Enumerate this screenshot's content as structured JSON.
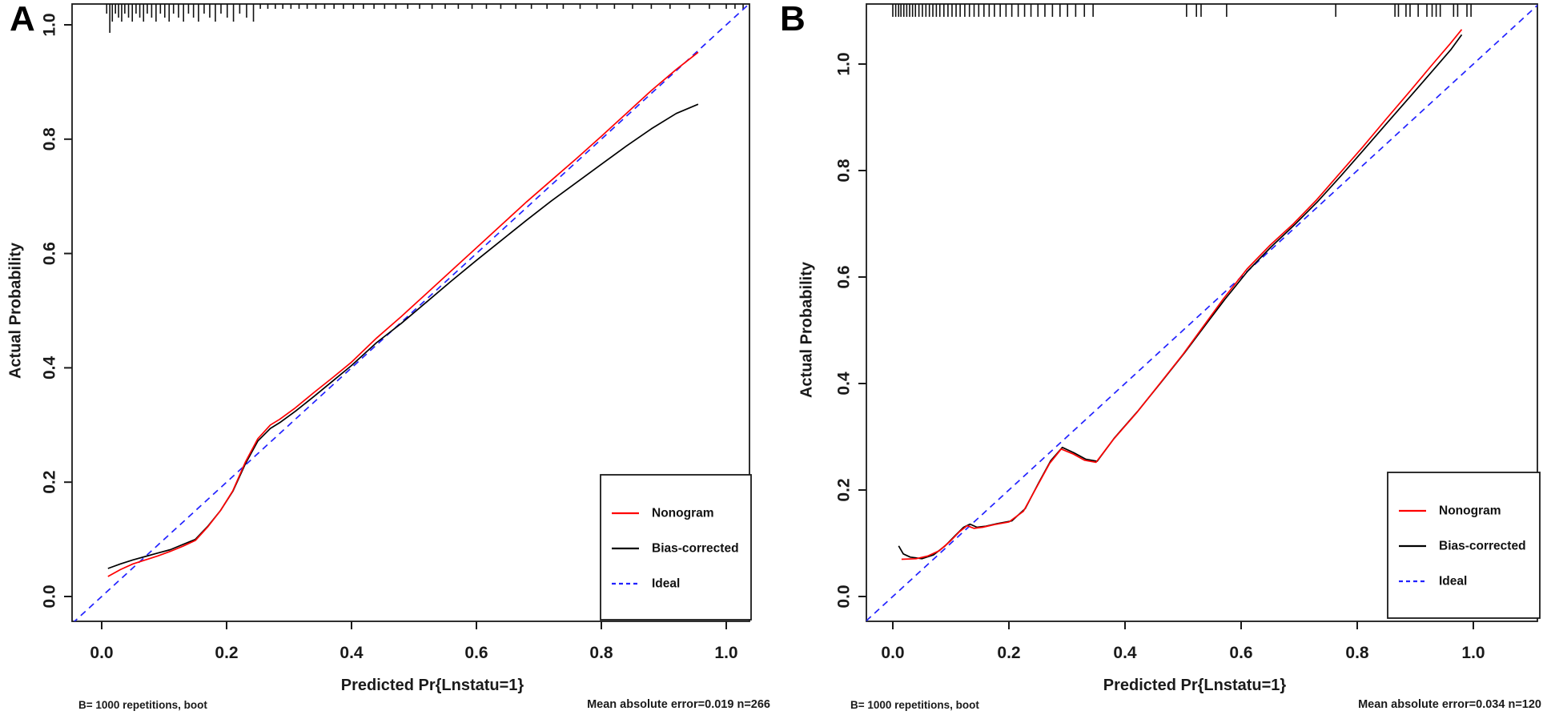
{
  "figure": {
    "background": "#ffffff",
    "axis_color": "#1a1a1a"
  },
  "panels": [
    {
      "label": "A"
    },
    {
      "label": "B"
    }
  ],
  "chart_data": [
    {
      "type": "line",
      "panel": "A",
      "title": "",
      "xlabel": "Predicted Pr{Lnstatu=1}",
      "ylabel": "Actual Probability",
      "xlim": [
        -0.047,
        1.037
      ],
      "ylim": [
        -0.043,
        1.036
      ],
      "grid": false,
      "legend_position": "bottom-right",
      "xticks": {
        "values": [
          0,
          0.2,
          0.4,
          0.6,
          0.8,
          1
        ],
        "labels": [
          "0.0",
          "0.2",
          "0.4",
          "0.6",
          "0.8",
          "1.0"
        ]
      },
      "yticks": {
        "values": [
          0,
          0.2,
          0.4,
          0.6,
          0.8,
          1
        ],
        "labels": [
          "0.0",
          "0.2",
          "0.4",
          "0.6",
          "0.8",
          "1.0"
        ]
      },
      "legend": [
        {
          "label": "Nonogram",
          "color": "#ff0000",
          "style": "solid"
        },
        {
          "label": "Bias-corrected",
          "color": "#000000",
          "style": "solid"
        },
        {
          "label": "Ideal",
          "color": "#2222ff",
          "style": "dashed"
        }
      ],
      "series": [
        {
          "name": "Ideal",
          "color": "#2222ff",
          "style": "dashed",
          "x": [
            -0.06,
            1.06
          ],
          "y": [
            -0.06,
            1.06
          ]
        },
        {
          "name": "Bias-corrected",
          "color": "#000000",
          "style": "solid",
          "x": [
            0.01,
            0.03,
            0.05,
            0.07,
            0.09,
            0.11,
            0.13,
            0.15,
            0.17,
            0.19,
            0.21,
            0.23,
            0.25,
            0.27,
            0.285,
            0.31,
            0.34,
            0.37,
            0.4,
            0.44,
            0.48,
            0.52,
            0.56,
            0.6,
            0.64,
            0.68,
            0.72,
            0.76,
            0.8,
            0.84,
            0.88,
            0.92,
            0.955
          ],
          "y": [
            0.049,
            0.057,
            0.064,
            0.07,
            0.076,
            0.082,
            0.091,
            0.1,
            0.123,
            0.15,
            0.184,
            0.232,
            0.272,
            0.294,
            0.304,
            0.324,
            0.35,
            0.377,
            0.404,
            0.444,
            0.478,
            0.515,
            0.552,
            0.588,
            0.623,
            0.658,
            0.692,
            0.724,
            0.756,
            0.788,
            0.818,
            0.845,
            0.861
          ]
        },
        {
          "name": "Nonogram",
          "color": "#ff0000",
          "style": "solid",
          "x": [
            0.01,
            0.03,
            0.05,
            0.07,
            0.09,
            0.11,
            0.13,
            0.15,
            0.17,
            0.19,
            0.21,
            0.23,
            0.25,
            0.27,
            0.285,
            0.31,
            0.34,
            0.37,
            0.4,
            0.44,
            0.48,
            0.52,
            0.56,
            0.6,
            0.64,
            0.68,
            0.72,
            0.76,
            0.8,
            0.84,
            0.88,
            0.92,
            0.955
          ],
          "y": [
            0.035,
            0.047,
            0.057,
            0.064,
            0.071,
            0.079,
            0.088,
            0.098,
            0.122,
            0.15,
            0.185,
            0.235,
            0.276,
            0.3,
            0.31,
            0.33,
            0.357,
            0.383,
            0.41,
            0.452,
            0.49,
            0.53,
            0.57,
            0.61,
            0.65,
            0.69,
            0.728,
            0.766,
            0.805,
            0.845,
            0.885,
            0.922,
            0.952
          ]
        }
      ],
      "rug_x": [
        0.008,
        0.013,
        0.017,
        0.022,
        0.027,
        0.032,
        0.037,
        0.043,
        0.049,
        0.055,
        0.061,
        0.067,
        0.073,
        0.08,
        0.087,
        0.094,
        0.101,
        0.108,
        0.115,
        0.123,
        0.131,
        0.139,
        0.147,
        0.155,
        0.164,
        0.173,
        0.182,
        0.191,
        0.201,
        0.211,
        0.221,
        0.232,
        0.243,
        0.254,
        0.266,
        0.278,
        0.29,
        0.303,
        0.316,
        0.329,
        0.343,
        0.357,
        0.372,
        0.387,
        0.403,
        0.419,
        0.436,
        0.453,
        0.471,
        0.49,
        0.509,
        0.529,
        0.55,
        0.571,
        0.593,
        0.616,
        0.639,
        0.663,
        0.688,
        0.713,
        0.739,
        0.766,
        0.793,
        0.821,
        0.85,
        0.88,
        0.91,
        0.941,
        0.973,
        1.0,
        1.014,
        1.027
      ],
      "rug_long_tick_x": 0.013,
      "notes": {
        "left": "B= 1000 repetitions, boot",
        "right": "Mean absolute error=0.019 n=266"
      },
      "mean_absolute_error": 0.019,
      "n": 266
    },
    {
      "type": "line",
      "panel": "B",
      "title": "",
      "xlabel": "Predicted Pr{Lnstatu=1}",
      "ylabel": "Actual Probability",
      "xlim": [
        -0.046,
        1.11
      ],
      "ylim": [
        -0.047,
        1.113
      ],
      "grid": false,
      "legend_position": "bottom-right",
      "xticks": {
        "values": [
          0,
          0.2,
          0.4,
          0.6,
          0.8,
          1
        ],
        "labels": [
          "0.0",
          "0.2",
          "0.4",
          "0.6",
          "0.8",
          "1.0"
        ]
      },
      "yticks": {
        "values": [
          0,
          0.2,
          0.4,
          0.6,
          0.8,
          1
        ],
        "labels": [
          "0.0",
          "0.2",
          "0.4",
          "0.6",
          "0.8",
          "1.0"
        ]
      },
      "legend": [
        {
          "label": "Nonogram",
          "color": "#ff0000",
          "style": "solid"
        },
        {
          "label": "Bias-corrected",
          "color": "#000000",
          "style": "solid"
        },
        {
          "label": "Ideal",
          "color": "#2222ff",
          "style": "dashed"
        }
      ],
      "series": [
        {
          "name": "Ideal",
          "color": "#2222ff",
          "style": "dashed",
          "x": [
            -0.06,
            1.15
          ],
          "y": [
            -0.06,
            1.15
          ]
        },
        {
          "name": "Bias-corrected",
          "color": "#000000",
          "style": "solid",
          "x": [
            0.01,
            0.018,
            0.03,
            0.05,
            0.07,
            0.09,
            0.108,
            0.122,
            0.133,
            0.145,
            0.16,
            0.18,
            0.205,
            0.228,
            0.252,
            0.272,
            0.292,
            0.312,
            0.332,
            0.352,
            0.382,
            0.422,
            0.462,
            0.502,
            0.542,
            0.572,
            0.612,
            0.652,
            0.692,
            0.732,
            0.772,
            0.812,
            0.852,
            0.892,
            0.932,
            0.962,
            0.98
          ],
          "y": [
            0.095,
            0.08,
            0.074,
            0.071,
            0.078,
            0.095,
            0.115,
            0.13,
            0.136,
            0.13,
            0.132,
            0.137,
            0.142,
            0.165,
            0.215,
            0.255,
            0.28,
            0.27,
            0.258,
            0.254,
            0.298,
            0.348,
            0.402,
            0.457,
            0.515,
            0.558,
            0.612,
            0.657,
            0.698,
            0.742,
            0.79,
            0.84,
            0.89,
            0.94,
            0.99,
            1.028,
            1.055
          ]
        },
        {
          "name": "Nonogram",
          "color": "#ff0000",
          "style": "solid",
          "x": [
            0.015,
            0.04,
            0.06,
            0.08,
            0.1,
            0.115,
            0.128,
            0.14,
            0.155,
            0.175,
            0.2,
            0.225,
            0.25,
            0.27,
            0.29,
            0.31,
            0.33,
            0.35,
            0.38,
            0.42,
            0.46,
            0.5,
            0.54,
            0.57,
            0.61,
            0.65,
            0.69,
            0.73,
            0.77,
            0.81,
            0.85,
            0.89,
            0.93,
            0.96,
            0.98
          ],
          "y": [
            0.07,
            0.071,
            0.076,
            0.086,
            0.105,
            0.122,
            0.133,
            0.128,
            0.13,
            0.135,
            0.14,
            0.16,
            0.21,
            0.25,
            0.277,
            0.268,
            0.256,
            0.252,
            0.295,
            0.345,
            0.4,
            0.455,
            0.515,
            0.56,
            0.615,
            0.66,
            0.7,
            0.745,
            0.795,
            0.845,
            0.897,
            0.948,
            1.0,
            1.038,
            1.065
          ]
        }
      ],
      "rug_x": [
        0.0,
        0.005,
        0.01,
        0.014,
        0.019,
        0.024,
        0.029,
        0.034,
        0.039,
        0.045,
        0.051,
        0.057,
        0.063,
        0.069,
        0.075,
        0.081,
        0.088,
        0.095,
        0.102,
        0.109,
        0.116,
        0.124,
        0.132,
        0.14,
        0.148,
        0.157,
        0.166,
        0.175,
        0.185,
        0.195,
        0.205,
        0.216,
        0.227,
        0.238,
        0.25,
        0.262,
        0.275,
        0.288,
        0.301,
        0.315,
        0.33,
        0.345,
        0.506,
        0.523,
        0.531,
        0.575,
        0.763,
        0.865,
        0.871,
        0.884,
        0.891,
        0.905,
        0.92,
        0.929,
        0.936,
        0.943,
        0.966,
        0.973,
        0.989,
        0.996
      ],
      "rug_long_tick_x": null,
      "notes": {
        "left": "B= 1000 repetitions, boot",
        "right": "Mean absolute error=0.034 n=120"
      },
      "mean_absolute_error": 0.034,
      "n": 120
    }
  ]
}
